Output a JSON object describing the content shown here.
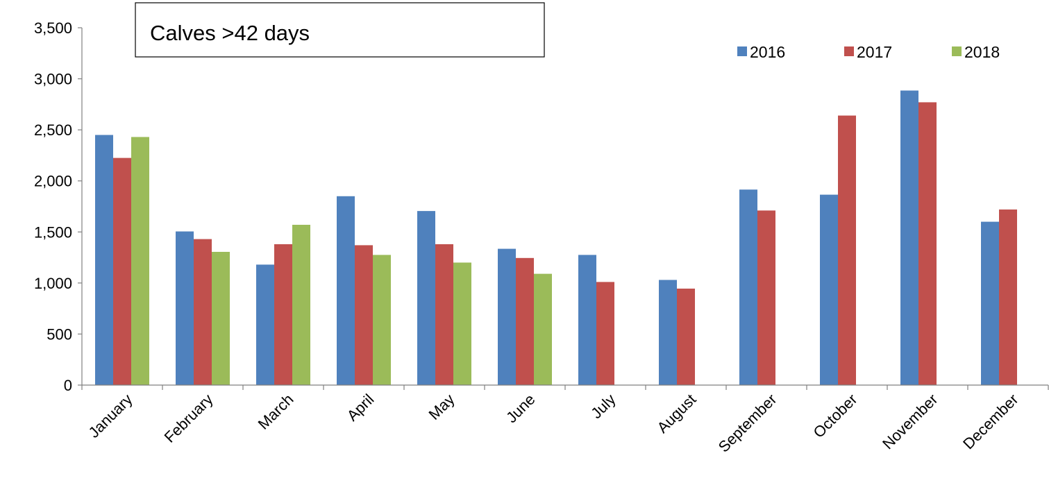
{
  "chart_data": {
    "type": "bar",
    "title": "Calves >42 days",
    "xlabel": "",
    "ylabel": "",
    "ylim": [
      0,
      3500
    ],
    "yticks": [
      0,
      500,
      1000,
      1500,
      2000,
      2500,
      3000,
      3500
    ],
    "ytick_labels": [
      "0",
      "500",
      "1,000",
      "1,500",
      "2,000",
      "2,500",
      "3,000",
      "3,500"
    ],
    "grid": false,
    "legend_position": "top-right",
    "categories": [
      "January",
      "February",
      "March",
      "April",
      "May",
      "June",
      "July",
      "August",
      "September",
      "October",
      "November",
      "December"
    ],
    "series": [
      {
        "name": "2016",
        "color": "#4F81BD",
        "values": [
          2450,
          1505,
          1180,
          1850,
          1705,
          1335,
          1275,
          1030,
          1915,
          1865,
          2885,
          1600
        ]
      },
      {
        "name": "2017",
        "color": "#C0504D",
        "values": [
          2225,
          1430,
          1380,
          1370,
          1380,
          1245,
          1010,
          945,
          1710,
          2640,
          2770,
          1720
        ]
      },
      {
        "name": "2018",
        "color": "#9BBB59",
        "values": [
          2430,
          1305,
          1570,
          1275,
          1200,
          1090,
          null,
          null,
          null,
          null,
          null,
          null
        ]
      }
    ]
  }
}
